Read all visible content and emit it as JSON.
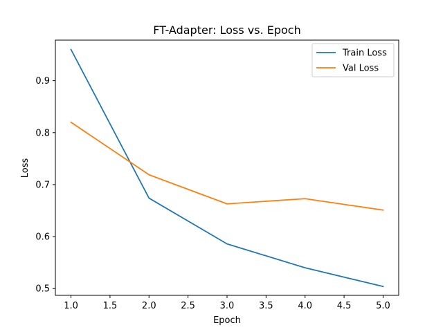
{
  "chart_data": {
    "type": "line",
    "title": "FT-Adapter: Loss vs. Epoch",
    "xlabel": "Epoch",
    "ylabel": "Loss",
    "xlim": [
      0.8,
      5.2
    ],
    "ylim": [
      0.487,
      0.978
    ],
    "xticks": [
      1.0,
      1.5,
      2.0,
      2.5,
      3.0,
      3.5,
      4.0,
      4.5,
      5.0
    ],
    "xtick_labels": [
      "1.0",
      "1.5",
      "2.0",
      "2.5",
      "3.0",
      "3.5",
      "4.0",
      "4.5",
      "5.0"
    ],
    "yticks": [
      0.5,
      0.6,
      0.7,
      0.8,
      0.9
    ],
    "ytick_labels": [
      "0.5",
      "0.6",
      "0.7",
      "0.8",
      "0.9"
    ],
    "grid": false,
    "legend": "top-right",
    "x": [
      1,
      2,
      3,
      4,
      5
    ],
    "series": [
      {
        "name": "Train Loss",
        "color": "#1f77b4",
        "values": [
          0.96,
          0.674,
          0.586,
          0.54,
          0.504
        ]
      },
      {
        "name": "Val Loss",
        "color": "#ff7f0e",
        "values": [
          0.82,
          0.719,
          0.663,
          0.673,
          0.651
        ]
      }
    ]
  }
}
